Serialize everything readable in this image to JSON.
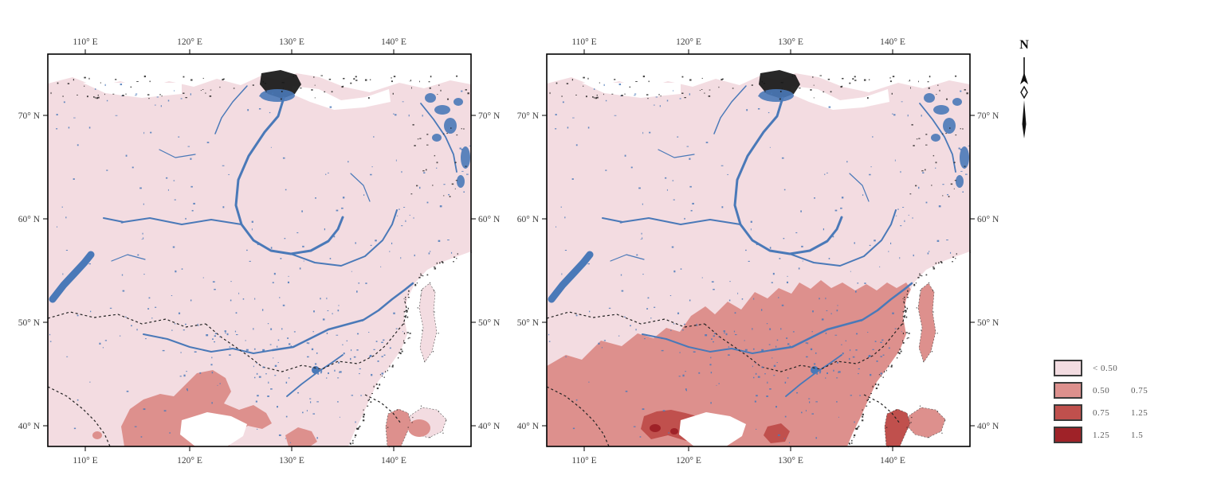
{
  "axes": {
    "longitude_ticks": [
      "110° E",
      "120° E",
      "130° E",
      "140° E"
    ],
    "latitude_ticks": [
      "70° N",
      "60° N",
      "50° N",
      "40° N"
    ]
  },
  "legend": {
    "classes": [
      {
        "range_low": "< 0.50",
        "range_high": "",
        "color": "#f3dce1"
      },
      {
        "range_low": "0.50",
        "range_high": "0.75",
        "color": "#dd908d"
      },
      {
        "range_low": "0.75",
        "range_high": "1.25",
        "color": "#c0504d"
      },
      {
        "range_low": "1.25",
        "range_high": "1.5",
        "color": "#9f2228"
      }
    ]
  },
  "north_arrow": {
    "label": "N"
  },
  "map_colors": {
    "land_class1": "#f3dce1",
    "class2": "#dd908d",
    "class3": "#c0504d",
    "class4": "#9f2228",
    "water": "#4a79b8",
    "coast_ink": "#161616",
    "ocean": "#ffffff",
    "frame": "#000000"
  }
}
